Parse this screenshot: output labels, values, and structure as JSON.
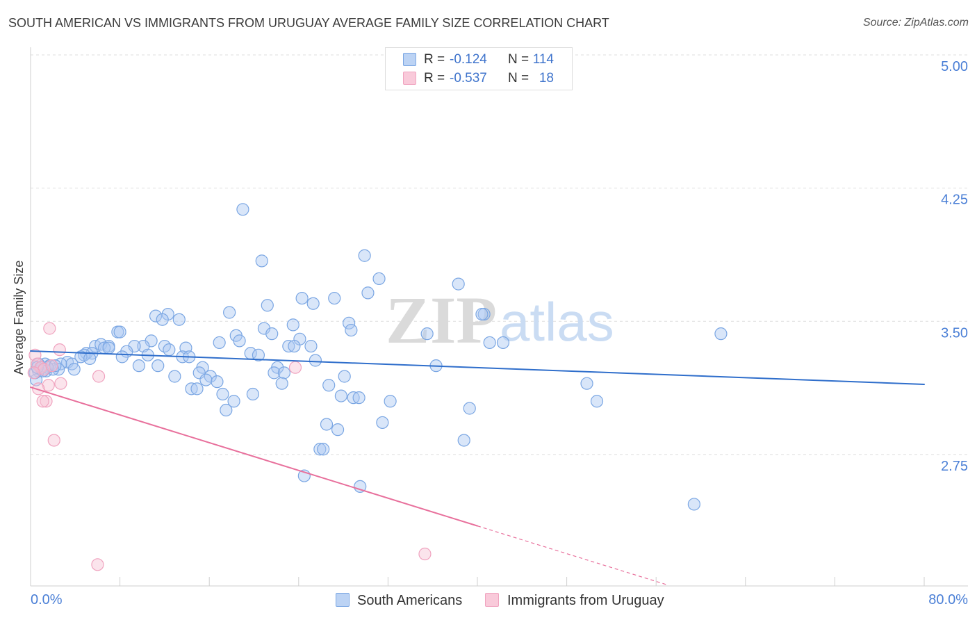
{
  "source": "Source: ZipAtlas.com",
  "watermark": {
    "zip": "ZIP",
    "atlas": "atlas"
  },
  "legend_stats": [
    {
      "r_label": "R =",
      "r_value": "-0.124",
      "n_label": "N =",
      "n_value": "114"
    },
    {
      "r_label": "R =",
      "r_value": "-0.537",
      "n_label": "N =",
      "n_value": "18"
    }
  ],
  "colors": {
    "blue_marker": "#7aa6e3",
    "blue_fill": "#aac8f1",
    "blue_trend": "#2f6ecb",
    "pink_marker": "#f0a3bf",
    "pink_fill": "#f7c3d5",
    "pink_trend": "#e8709c",
    "tick_label": "#4a7fd6",
    "value_text": "#3f74cc"
  },
  "chart_data": {
    "type": "scatter",
    "title": "SOUTH AMERICAN VS IMMIGRANTS FROM URUGUAY AVERAGE FAMILY SIZE CORRELATION CHART",
    "xlabel": "",
    "ylabel": "Average Family Size",
    "xlim": [
      0,
      80
    ],
    "ylim": [
      2.01,
      5.043
    ],
    "xticks": [
      0,
      8,
      16,
      24,
      32,
      40,
      48,
      56,
      64,
      72,
      80
    ],
    "xtick_labels": [
      "0.0%",
      "80.0%"
    ],
    "yticks": [
      5.0,
      4.25,
      3.5,
      2.75
    ],
    "ytick_labels": [
      "5.00",
      "4.25",
      "3.50",
      "2.75"
    ],
    "grid": true,
    "legend_position": "bottom",
    "series": [
      {
        "name": "South Americans",
        "color": "#7aa6e3",
        "fill": "#aac8f1",
        "trend_color": "#2f6ecb",
        "trend": {
          "x": [
            0,
            80
          ],
          "y": [
            3.333,
            3.145
          ]
        },
        "points": [
          [
            19.0,
            4.13
          ],
          [
            20.7,
            3.84
          ],
          [
            29.9,
            3.87
          ],
          [
            31.2,
            3.74
          ],
          [
            38.3,
            3.71
          ],
          [
            30.2,
            3.66
          ],
          [
            24.3,
            3.63
          ],
          [
            27.2,
            3.63
          ],
          [
            25.3,
            3.6
          ],
          [
            21.2,
            3.59
          ],
          [
            17.8,
            3.55
          ],
          [
            12.3,
            3.54
          ],
          [
            11.2,
            3.53
          ],
          [
            13.3,
            3.51
          ],
          [
            11.8,
            3.51
          ],
          [
            40.6,
            3.54
          ],
          [
            40.4,
            3.54
          ],
          [
            28.5,
            3.49
          ],
          [
            23.5,
            3.48
          ],
          [
            20.9,
            3.46
          ],
          [
            28.7,
            3.45
          ],
          [
            7.8,
            3.44
          ],
          [
            8.0,
            3.44
          ],
          [
            35.5,
            3.43
          ],
          [
            61.8,
            3.43
          ],
          [
            21.6,
            3.43
          ],
          [
            18.4,
            3.42
          ],
          [
            24.1,
            3.4
          ],
          [
            18.7,
            3.39
          ],
          [
            10.8,
            3.39
          ],
          [
            16.9,
            3.38
          ],
          [
            41.1,
            3.38
          ],
          [
            42.3,
            3.38
          ],
          [
            23.1,
            3.36
          ],
          [
            25.1,
            3.36
          ],
          [
            23.6,
            3.36
          ],
          [
            10.1,
            3.36
          ],
          [
            12.0,
            3.36
          ],
          [
            13.9,
            3.35
          ],
          [
            12.4,
            3.34
          ],
          [
            9.3,
            3.36
          ],
          [
            5.8,
            3.36
          ],
          [
            6.3,
            3.37
          ],
          [
            7.0,
            3.36
          ],
          [
            6.6,
            3.35
          ],
          [
            7.0,
            3.35
          ],
          [
            5.0,
            3.32
          ],
          [
            5.5,
            3.32
          ],
          [
            4.8,
            3.31
          ],
          [
            4.5,
            3.3
          ],
          [
            5.3,
            3.29
          ],
          [
            8.6,
            3.33
          ],
          [
            10.5,
            3.31
          ],
          [
            8.2,
            3.3
          ],
          [
            13.6,
            3.3
          ],
          [
            14.2,
            3.3
          ],
          [
            19.7,
            3.32
          ],
          [
            20.4,
            3.31
          ],
          [
            25.5,
            3.28
          ],
          [
            3.3,
            3.27
          ],
          [
            3.7,
            3.26
          ],
          [
            2.7,
            3.26
          ],
          [
            1.3,
            3.26
          ],
          [
            0.7,
            3.26
          ],
          [
            1.7,
            3.25
          ],
          [
            9.7,
            3.25
          ],
          [
            15.4,
            3.24
          ],
          [
            11.4,
            3.25
          ],
          [
            22.1,
            3.24
          ],
          [
            36.3,
            3.25
          ],
          [
            3.9,
            3.23
          ],
          [
            2.5,
            3.23
          ],
          [
            1.4,
            3.22
          ],
          [
            0.7,
            3.22
          ],
          [
            21.8,
            3.21
          ],
          [
            22.7,
            3.21
          ],
          [
            15.1,
            3.21
          ],
          [
            28.1,
            3.19
          ],
          [
            16.1,
            3.19
          ],
          [
            12.9,
            3.19
          ],
          [
            15.7,
            3.17
          ],
          [
            16.7,
            3.16
          ],
          [
            0.5,
            3.17
          ],
          [
            49.8,
            3.15
          ],
          [
            22.5,
            3.15
          ],
          [
            26.7,
            3.14
          ],
          [
            14.4,
            3.12
          ],
          [
            14.9,
            3.12
          ],
          [
            17.2,
            3.09
          ],
          [
            19.9,
            3.09
          ],
          [
            27.8,
            3.08
          ],
          [
            28.9,
            3.07
          ],
          [
            29.4,
            3.07
          ],
          [
            18.2,
            3.05
          ],
          [
            32.2,
            3.05
          ],
          [
            50.7,
            3.05
          ],
          [
            39.3,
            3.01
          ],
          [
            17.5,
            3.0
          ],
          [
            26.5,
            2.92
          ],
          [
            31.5,
            2.93
          ],
          [
            27.5,
            2.89
          ],
          [
            38.8,
            2.83
          ],
          [
            25.9,
            2.78
          ],
          [
            26.2,
            2.78
          ],
          [
            24.5,
            2.63
          ],
          [
            29.5,
            2.57
          ],
          [
            59.4,
            2.47
          ],
          [
            0.4,
            3.21
          ],
          [
            1.0,
            3.24
          ],
          [
            2.0,
            3.23
          ],
          [
            1.5,
            3.24
          ],
          [
            1.1,
            3.22
          ],
          [
            0.6,
            3.24
          ],
          [
            2.2,
            3.25
          ]
        ]
      },
      {
        "name": "Immigrants from Uruguay",
        "color": "#f0a3bf",
        "fill": "#f7c3d5",
        "trend_color": "#e8709c",
        "trend": {
          "x": [
            0,
            40
          ],
          "y": [
            3.129,
            2.348
          ],
          "dashed_to_x": 57
        },
        "points": [
          [
            1.7,
            3.46
          ],
          [
            2.6,
            3.34
          ],
          [
            0.4,
            3.31
          ],
          [
            0.6,
            3.26
          ],
          [
            0.9,
            3.24
          ],
          [
            1.2,
            3.23
          ],
          [
            0.3,
            3.21
          ],
          [
            1.9,
            3.25
          ],
          [
            23.7,
            3.24
          ],
          [
            6.1,
            3.19
          ],
          [
            1.6,
            3.14
          ],
          [
            2.7,
            3.15
          ],
          [
            0.7,
            3.12
          ],
          [
            1.4,
            3.05
          ],
          [
            1.1,
            3.05
          ],
          [
            2.1,
            2.83
          ],
          [
            6.0,
            2.13
          ],
          [
            35.3,
            2.19
          ]
        ]
      }
    ]
  }
}
